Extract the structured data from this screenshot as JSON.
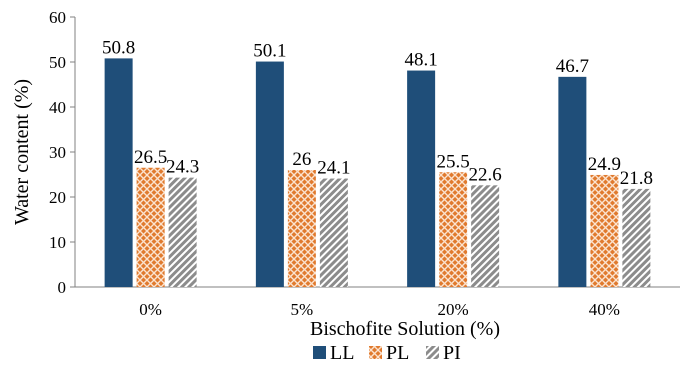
{
  "chart_data": {
    "type": "bar",
    "title": "",
    "xlabel": "Bischofite Solution (%)",
    "ylabel": "Water content (%)",
    "ylim": [
      0,
      60
    ],
    "yticks": [
      0,
      10,
      20,
      30,
      40,
      50,
      60
    ],
    "grid": false,
    "legend_position": "bottom",
    "categories": [
      "0%",
      "5%",
      "20%",
      "40%"
    ],
    "series": [
      {
        "name": "LL",
        "values": [
          50.8,
          50.1,
          48.1,
          46.7
        ],
        "labels": [
          "50.8",
          "50.1",
          "48.1",
          "46.7"
        ],
        "color": "#1f4e79",
        "pattern": "solid"
      },
      {
        "name": "PL",
        "values": [
          26.5,
          26,
          25.5,
          24.9
        ],
        "labels": [
          "26.5",
          "26",
          "25.5",
          "24.9"
        ],
        "color": "#e07a2e",
        "pattern": "crosshatch"
      },
      {
        "name": "PI",
        "values": [
          24.3,
          24.1,
          22.6,
          21.8
        ],
        "labels": [
          "24.3",
          "24.1",
          "22.6",
          "21.8"
        ],
        "color": "#8c8c8c",
        "pattern": "diagonal"
      }
    ]
  }
}
